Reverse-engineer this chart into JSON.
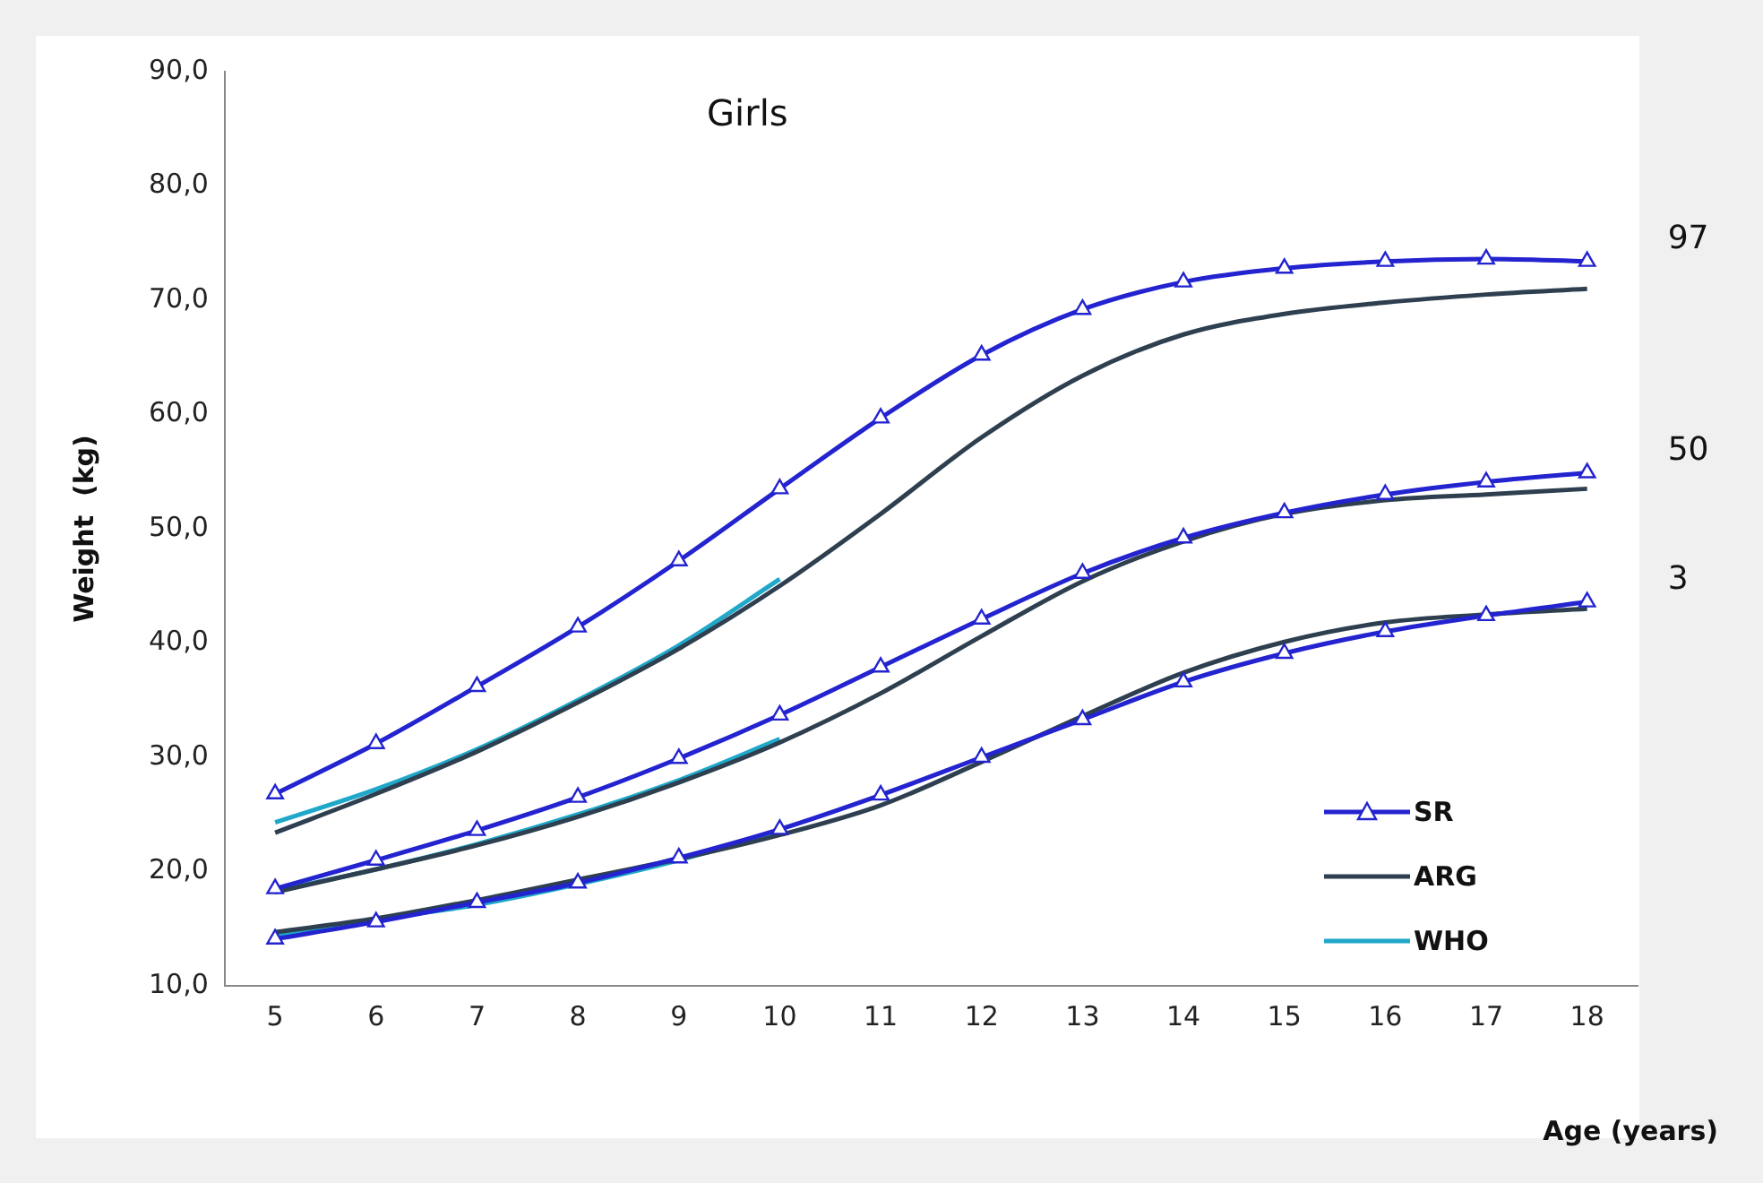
{
  "chart_data": {
    "type": "line",
    "title": "Girls",
    "xlabel": "Age (years)",
    "ylabel": "Weight  (kg)",
    "categories": [
      "5",
      "6",
      "7",
      "8",
      "9",
      "10",
      "11",
      "12",
      "13",
      "14",
      "15",
      "16",
      "17",
      "18"
    ],
    "ylim": [
      10,
      90
    ],
    "yticks": [
      {
        "value": 10,
        "label": "10,0"
      },
      {
        "value": 20,
        "label": "20,0"
      },
      {
        "value": 30,
        "label": "30,0"
      },
      {
        "value": 40,
        "label": "40,0"
      },
      {
        "value": 50,
        "label": "50,0"
      },
      {
        "value": 60,
        "label": "60,0"
      },
      {
        "value": 70,
        "label": "70,0"
      },
      {
        "value": 80,
        "label": "80,0"
      },
      {
        "value": 90,
        "label": "90,0"
      }
    ],
    "grid": false,
    "legend": "bottom right",
    "series": [
      {
        "name": "SR",
        "color": "#2323d0",
        "marker": "triangle",
        "values": [
          26.8,
          31.2,
          36.2,
          41.4,
          47.2,
          53.5,
          59.7,
          65.2,
          69.2,
          71.6,
          72.8,
          73.4,
          73.6,
          73.4
        ]
      },
      {
        "name": "ARG",
        "color": "#2e3f4f",
        "marker": "none",
        "values": [
          23.4,
          26.8,
          30.5,
          34.8,
          39.5,
          45.0,
          51.3,
          58.0,
          63.4,
          67.0,
          68.8,
          69.8,
          70.5,
          71.0
        ]
      },
      {
        "name": "WHO",
        "color": "#1fa8c9",
        "marker": "none",
        "values": [
          24.3,
          27.2,
          30.7,
          35.0,
          39.8,
          45.6,
          null,
          null,
          null,
          null,
          null,
          null,
          null,
          null
        ]
      },
      {
        "color": "#2323d0",
        "marker": "triangle",
        "values": [
          18.5,
          21.0,
          23.6,
          26.5,
          29.9,
          33.7,
          37.9,
          42.1,
          46.1,
          49.2,
          51.4,
          53.0,
          54.1,
          54.9
        ]
      },
      {
        "color": "#2e3f4f",
        "marker": "none",
        "values": [
          18.2,
          20.2,
          22.3,
          24.8,
          27.8,
          31.3,
          35.6,
          40.6,
          45.4,
          48.9,
          51.3,
          52.5,
          53.0,
          53.5
        ]
      },
      {
        "color": "#1fa8c9",
        "marker": "none",
        "values": [
          18.3,
          20.2,
          22.4,
          25.0,
          28.0,
          31.6,
          null,
          null,
          null,
          null,
          null,
          null,
          null,
          null
        ]
      },
      {
        "color": "#2323d0",
        "marker": "triangle",
        "values": [
          14.1,
          15.6,
          17.3,
          19.0,
          21.2,
          23.7,
          26.7,
          30.0,
          33.3,
          36.6,
          39.1,
          41.0,
          42.4,
          43.6
        ]
      },
      {
        "color": "#2e3f4f",
        "marker": "none",
        "values": [
          14.7,
          15.9,
          17.5,
          19.3,
          21.1,
          23.2,
          25.8,
          29.6,
          33.6,
          37.4,
          40.1,
          41.8,
          42.5,
          43.0
        ]
      },
      {
        "color": "#1fa8c9",
        "marker": "none",
        "values": [
          14.4,
          15.8,
          17.1,
          18.9,
          21.0,
          23.5,
          null,
          null,
          null,
          null,
          null,
          null,
          null,
          null
        ]
      }
    ],
    "annotations": [
      {
        "text": "97",
        "x": "18",
        "y": 73.4
      },
      {
        "text": "50",
        "x": "18",
        "y": 54.9
      },
      {
        "text": "3",
        "x": "18",
        "y": 43.6
      }
    ]
  }
}
